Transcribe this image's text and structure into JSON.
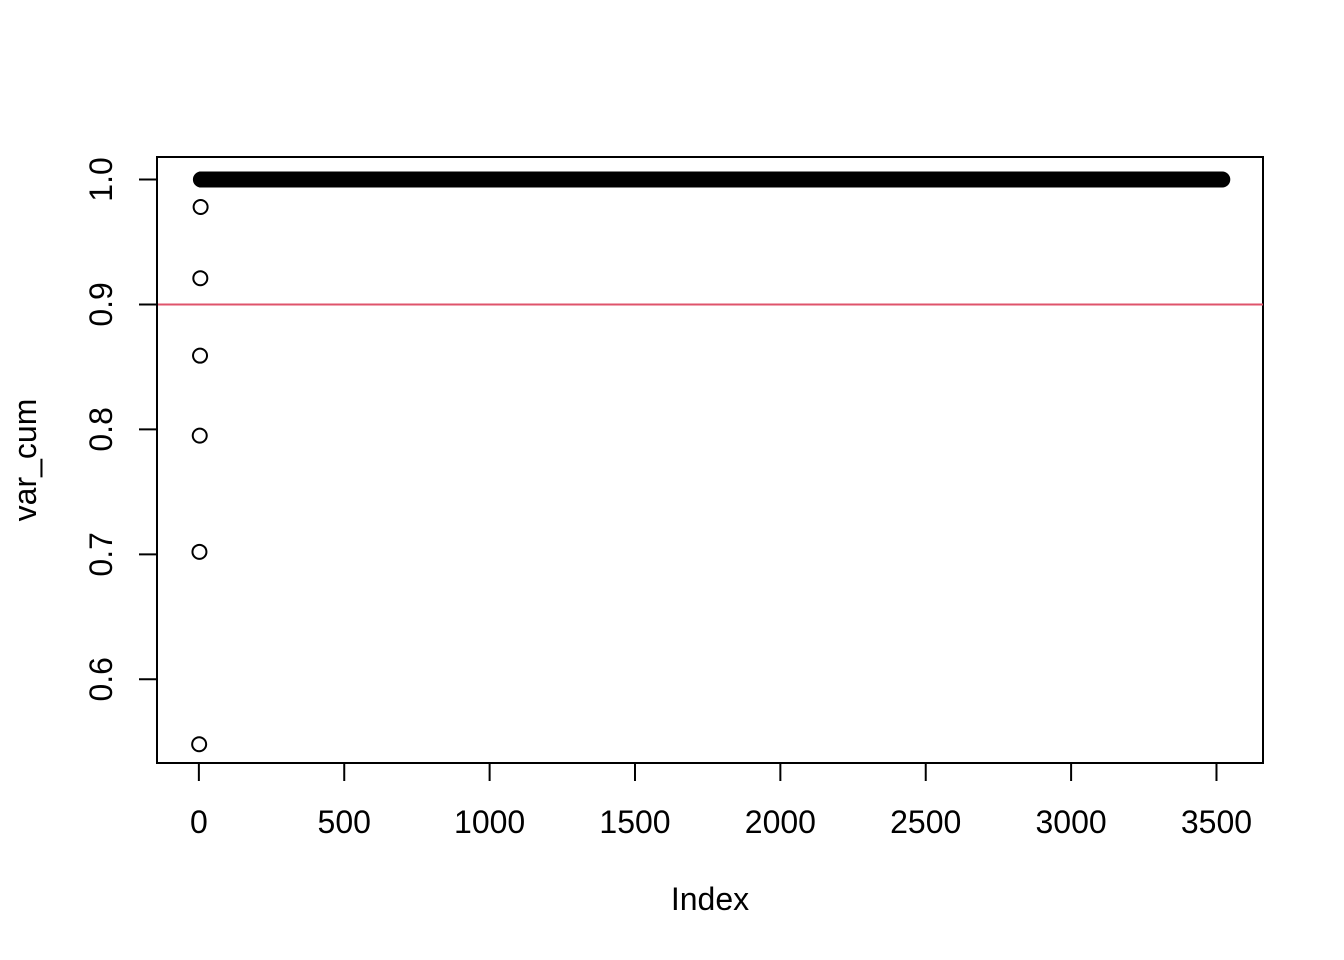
{
  "chart_data": {
    "type": "scatter",
    "title": "",
    "xlabel": "Index",
    "ylabel": "var_cum",
    "xlim": [
      -144,
      3660
    ],
    "ylim": [
      0.533,
      1.018
    ],
    "x_ticks": [
      0,
      500,
      1000,
      1500,
      2000,
      2500,
      3000,
      3500
    ],
    "y_ticks": [
      0.6,
      0.7,
      0.8,
      0.9,
      1.0
    ],
    "x_tick_labels": [
      "0",
      "500",
      "1000",
      "1500",
      "2000",
      "2500",
      "3000",
      "3500"
    ],
    "y_tick_labels": [
      "0.6",
      "0.7",
      "0.8",
      "0.9",
      "1.0"
    ],
    "grid": false,
    "legend": false,
    "marker": "open-circle",
    "point_color": "#000000",
    "series": [
      {
        "x": [
          1,
          2,
          3,
          4,
          5,
          6,
          7
        ],
        "y": [
          0.548,
          0.702,
          0.795,
          0.859,
          0.921,
          0.978,
          1.0
        ],
        "dense_tail": {
          "x_start": 8,
          "x_end": 3520,
          "y": 1.0
        }
      }
    ],
    "reference_line": {
      "orientation": "horizontal",
      "y": 0.9,
      "color": "#DF536B"
    }
  }
}
